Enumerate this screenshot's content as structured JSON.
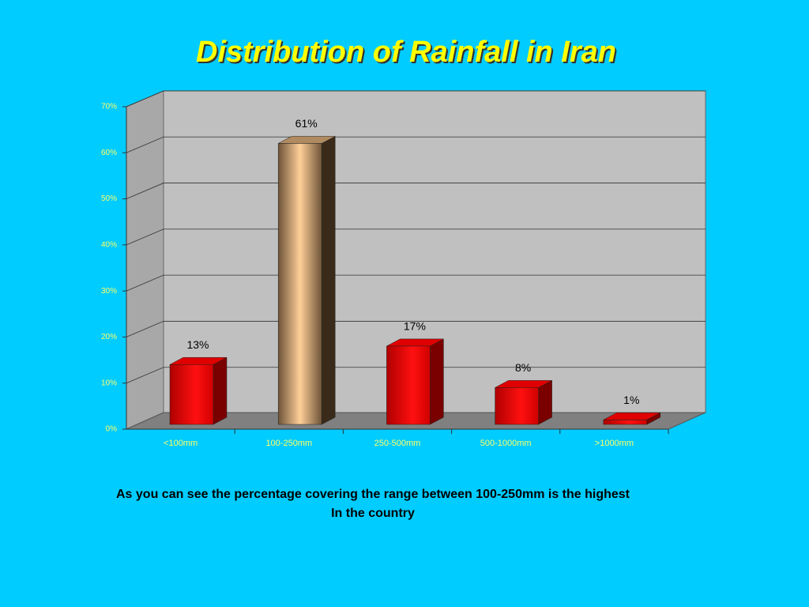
{
  "chart_data": {
    "type": "bar3d",
    "title": "Distribution  of  Rainfall  in  Iran",
    "categories": [
      "<100mm",
      "100-250mm",
      "250-500mm",
      "500-1000mm",
      ">1000mm"
    ],
    "values": [
      13,
      61,
      17,
      8,
      1
    ],
    "value_labels": [
      "13%",
      "61%",
      "17%",
      "8%",
      "1%"
    ],
    "colors": [
      "#e00000",
      "#b08a60",
      "#e00000",
      "#e00000",
      "#e00000"
    ],
    "ylim": [
      0,
      70
    ],
    "yticks": [
      {
        "value": 0,
        "label": "0%"
      },
      {
        "value": 10,
        "label": "10%"
      },
      {
        "value": 20,
        "label": "20%"
      },
      {
        "value": 30,
        "label": "30%"
      },
      {
        "value": 40,
        "label": "40%"
      },
      {
        "value": 50,
        "label": "50%"
      },
      {
        "value": 60,
        "label": "60%"
      },
      {
        "value": 70,
        "label": "70%"
      }
    ],
    "grid": true,
    "notes": [
      "As you can see the percentage covering the range between 100-250mm is the highest",
      "In the country"
    ]
  }
}
